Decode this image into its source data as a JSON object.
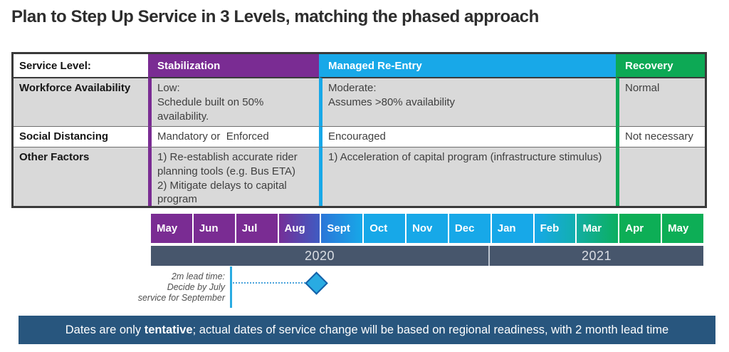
{
  "title": "Plan to Step Up Service in 3 Levels, matching the phased approach",
  "table": {
    "header": {
      "label": "Service Level:",
      "phases": [
        {
          "name": "Stabilization",
          "color": "#7a2c93"
        },
        {
          "name": "Managed Re-Entry",
          "color": "#18a8e8"
        },
        {
          "name": "Recovery",
          "color": "#0da955"
        }
      ]
    },
    "rows": [
      {
        "label": "Workforce Availability",
        "values": [
          "Low:\nSchedule built on 50% availability.",
          "Moderate:\nAssumes >80% availability",
          "Normal"
        ]
      },
      {
        "label": "Social Distancing",
        "values": [
          "Mandatory or  Enforced",
          "Encouraged",
          "Not necessary"
        ]
      },
      {
        "label": "Other Factors",
        "values": [
          "1) Re-establish accurate rider planning tools (e.g. Bus ETA)\n2) Mitigate delays to capital program",
          "1) Acceleration of capital program (infrastructure stimulus)",
          ""
        ]
      }
    ]
  },
  "timeline": {
    "months": [
      {
        "label": "May",
        "bg": "#7a2c93"
      },
      {
        "label": "Jun",
        "bg": "#7a2c93"
      },
      {
        "label": "Jul",
        "bg": "#7a2c93"
      },
      {
        "label": "Aug",
        "bg": "linear-gradient(90deg,#752f98,#3f5bc2)"
      },
      {
        "label": "Sept",
        "bg": "linear-gradient(90deg,#2b76d8,#17a8e8)"
      },
      {
        "label": "Oct",
        "bg": "#17a8e8"
      },
      {
        "label": "Nov",
        "bg": "#17a8e8"
      },
      {
        "label": "Dec",
        "bg": "#17a8e8"
      },
      {
        "label": "Jan",
        "bg": "#17a8e8"
      },
      {
        "label": "Feb",
        "bg": "linear-gradient(90deg,#17a8e8,#12afb0)"
      },
      {
        "label": "Mar",
        "bg": "linear-gradient(90deg,#13aea2,#0baf60)"
      },
      {
        "label": "Apr",
        "bg": "#0dae56"
      },
      {
        "label": "May",
        "bg": "#0dae56"
      }
    ],
    "bar_color": "#47566c",
    "years": [
      {
        "label": "2020"
      },
      {
        "label": "2021"
      }
    ]
  },
  "callout": {
    "lines": [
      "2m lead time:",
      "Decide by July",
      "service for September"
    ],
    "accent_color": "#29abe2",
    "diamond_fill": "#29abe2",
    "diamond_border": "#1460a8"
  },
  "banner": {
    "bg": "#28567e",
    "prefix": "Dates are only ",
    "emphasis": "tentative",
    "suffix": "; actual dates of service change will be based on regional readiness, with 2 month lead time"
  }
}
